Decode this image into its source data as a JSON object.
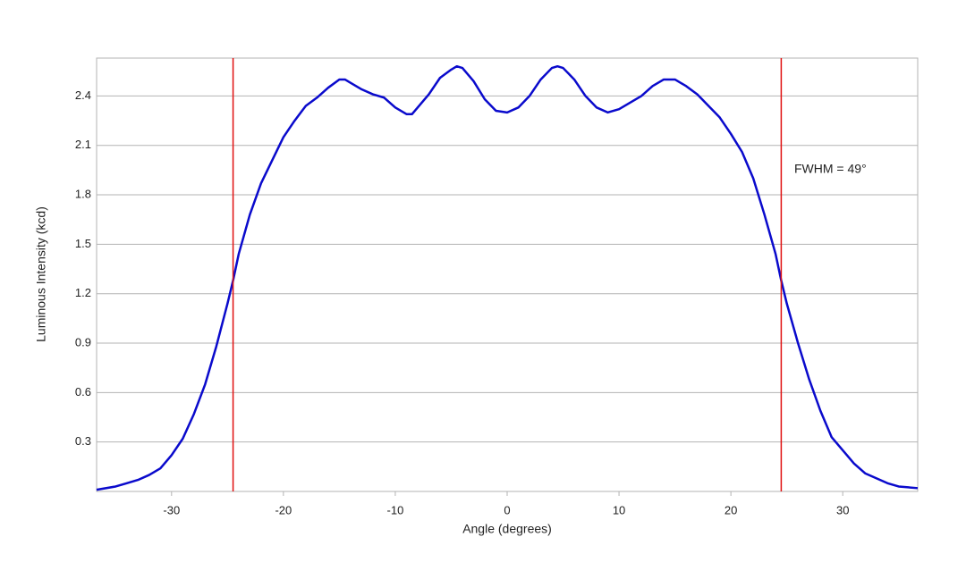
{
  "chart_data": {
    "type": "line",
    "x_label": "Angle (degrees)",
    "y_label": "Luminous Intensity (kcd)",
    "annotation": "FWHM = 49°",
    "x": [
      -36.7,
      -35,
      -34,
      -33,
      -32,
      -31,
      -30,
      -29,
      -28,
      -27,
      -26,
      -25,
      -24.5,
      -24,
      -23,
      -22,
      -21,
      -20,
      -19,
      -18,
      -17,
      -16,
      -15,
      -14.5,
      -14,
      -13,
      -12,
      -11,
      -10,
      -9,
      -8.5,
      -8,
      -7,
      -6,
      -5,
      -4.5,
      -4,
      -3,
      -2,
      -1,
      0,
      1,
      2,
      3,
      4,
      4.5,
      5,
      6,
      7,
      8,
      9,
      10,
      11,
      12,
      13,
      14,
      15,
      16,
      17,
      18,
      19,
      20,
      21,
      22,
      23,
      24,
      24.5,
      25,
      26,
      27,
      28,
      29,
      30,
      31,
      32,
      33,
      34,
      35,
      36.7
    ],
    "series": [
      {
        "name": "Luminous Intensity",
        "color": "#0a0acc",
        "values": [
          0.01,
          0.03,
          0.05,
          0.07,
          0.1,
          0.14,
          0.22,
          0.32,
          0.47,
          0.65,
          0.88,
          1.14,
          1.28,
          1.44,
          1.68,
          1.87,
          2.01,
          2.15,
          2.25,
          2.34,
          2.39,
          2.45,
          2.5,
          2.5,
          2.48,
          2.44,
          2.41,
          2.39,
          2.33,
          2.29,
          2.29,
          2.33,
          2.41,
          2.51,
          2.56,
          2.58,
          2.57,
          2.49,
          2.38,
          2.31,
          2.3,
          2.33,
          2.4,
          2.5,
          2.57,
          2.58,
          2.57,
          2.5,
          2.4,
          2.33,
          2.3,
          2.32,
          2.36,
          2.4,
          2.46,
          2.5,
          2.5,
          2.46,
          2.41,
          2.34,
          2.27,
          2.17,
          2.06,
          1.9,
          1.68,
          1.44,
          1.28,
          1.14,
          0.9,
          0.68,
          0.49,
          0.33,
          0.25,
          0.17,
          0.11,
          0.08,
          0.05,
          0.03,
          0.02
        ]
      }
    ],
    "vlines": [
      -24.5,
      24.5
    ],
    "vline_color": "#e01010",
    "xlim": [
      -36.7,
      36.7
    ],
    "xticks": [
      -30,
      -20,
      -10,
      0,
      10,
      20,
      30
    ],
    "ylim": [
      0,
      2.63
    ],
    "yticks": [
      0.3,
      0.6,
      0.9,
      1.2,
      1.5,
      1.8,
      2.1,
      2.4
    ],
    "grid": true
  }
}
